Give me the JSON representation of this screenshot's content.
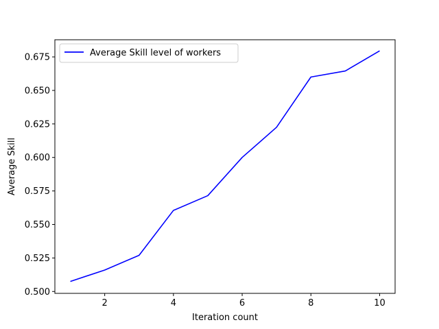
{
  "chart_data": {
    "type": "line",
    "title": "",
    "xlabel": "Iteration count",
    "ylabel": "Average Skill",
    "xlim": [
      0.55,
      10.45
    ],
    "ylim": [
      0.4986,
      0.6878
    ],
    "xticks": [
      2,
      4,
      6,
      8,
      10
    ],
    "xtick_labels": [
      "2",
      "4",
      "6",
      "8",
      "10"
    ],
    "yticks": [
      0.5,
      0.525,
      0.55,
      0.575,
      0.6,
      0.625,
      0.65,
      0.675
    ],
    "ytick_labels": [
      "0.500",
      "0.525",
      "0.550",
      "0.575",
      "0.600",
      "0.625",
      "0.650",
      "0.675"
    ],
    "grid": false,
    "legend_position": "top-left",
    "series": [
      {
        "name": "Average Skill level of workers",
        "color": "#0000ff",
        "x": [
          1,
          2,
          3,
          4,
          5,
          6,
          7,
          8,
          9,
          10
        ],
        "y": [
          0.5075,
          0.516,
          0.527,
          0.5605,
          0.5715,
          0.6,
          0.6225,
          0.66,
          0.6645,
          0.6795
        ]
      }
    ]
  }
}
